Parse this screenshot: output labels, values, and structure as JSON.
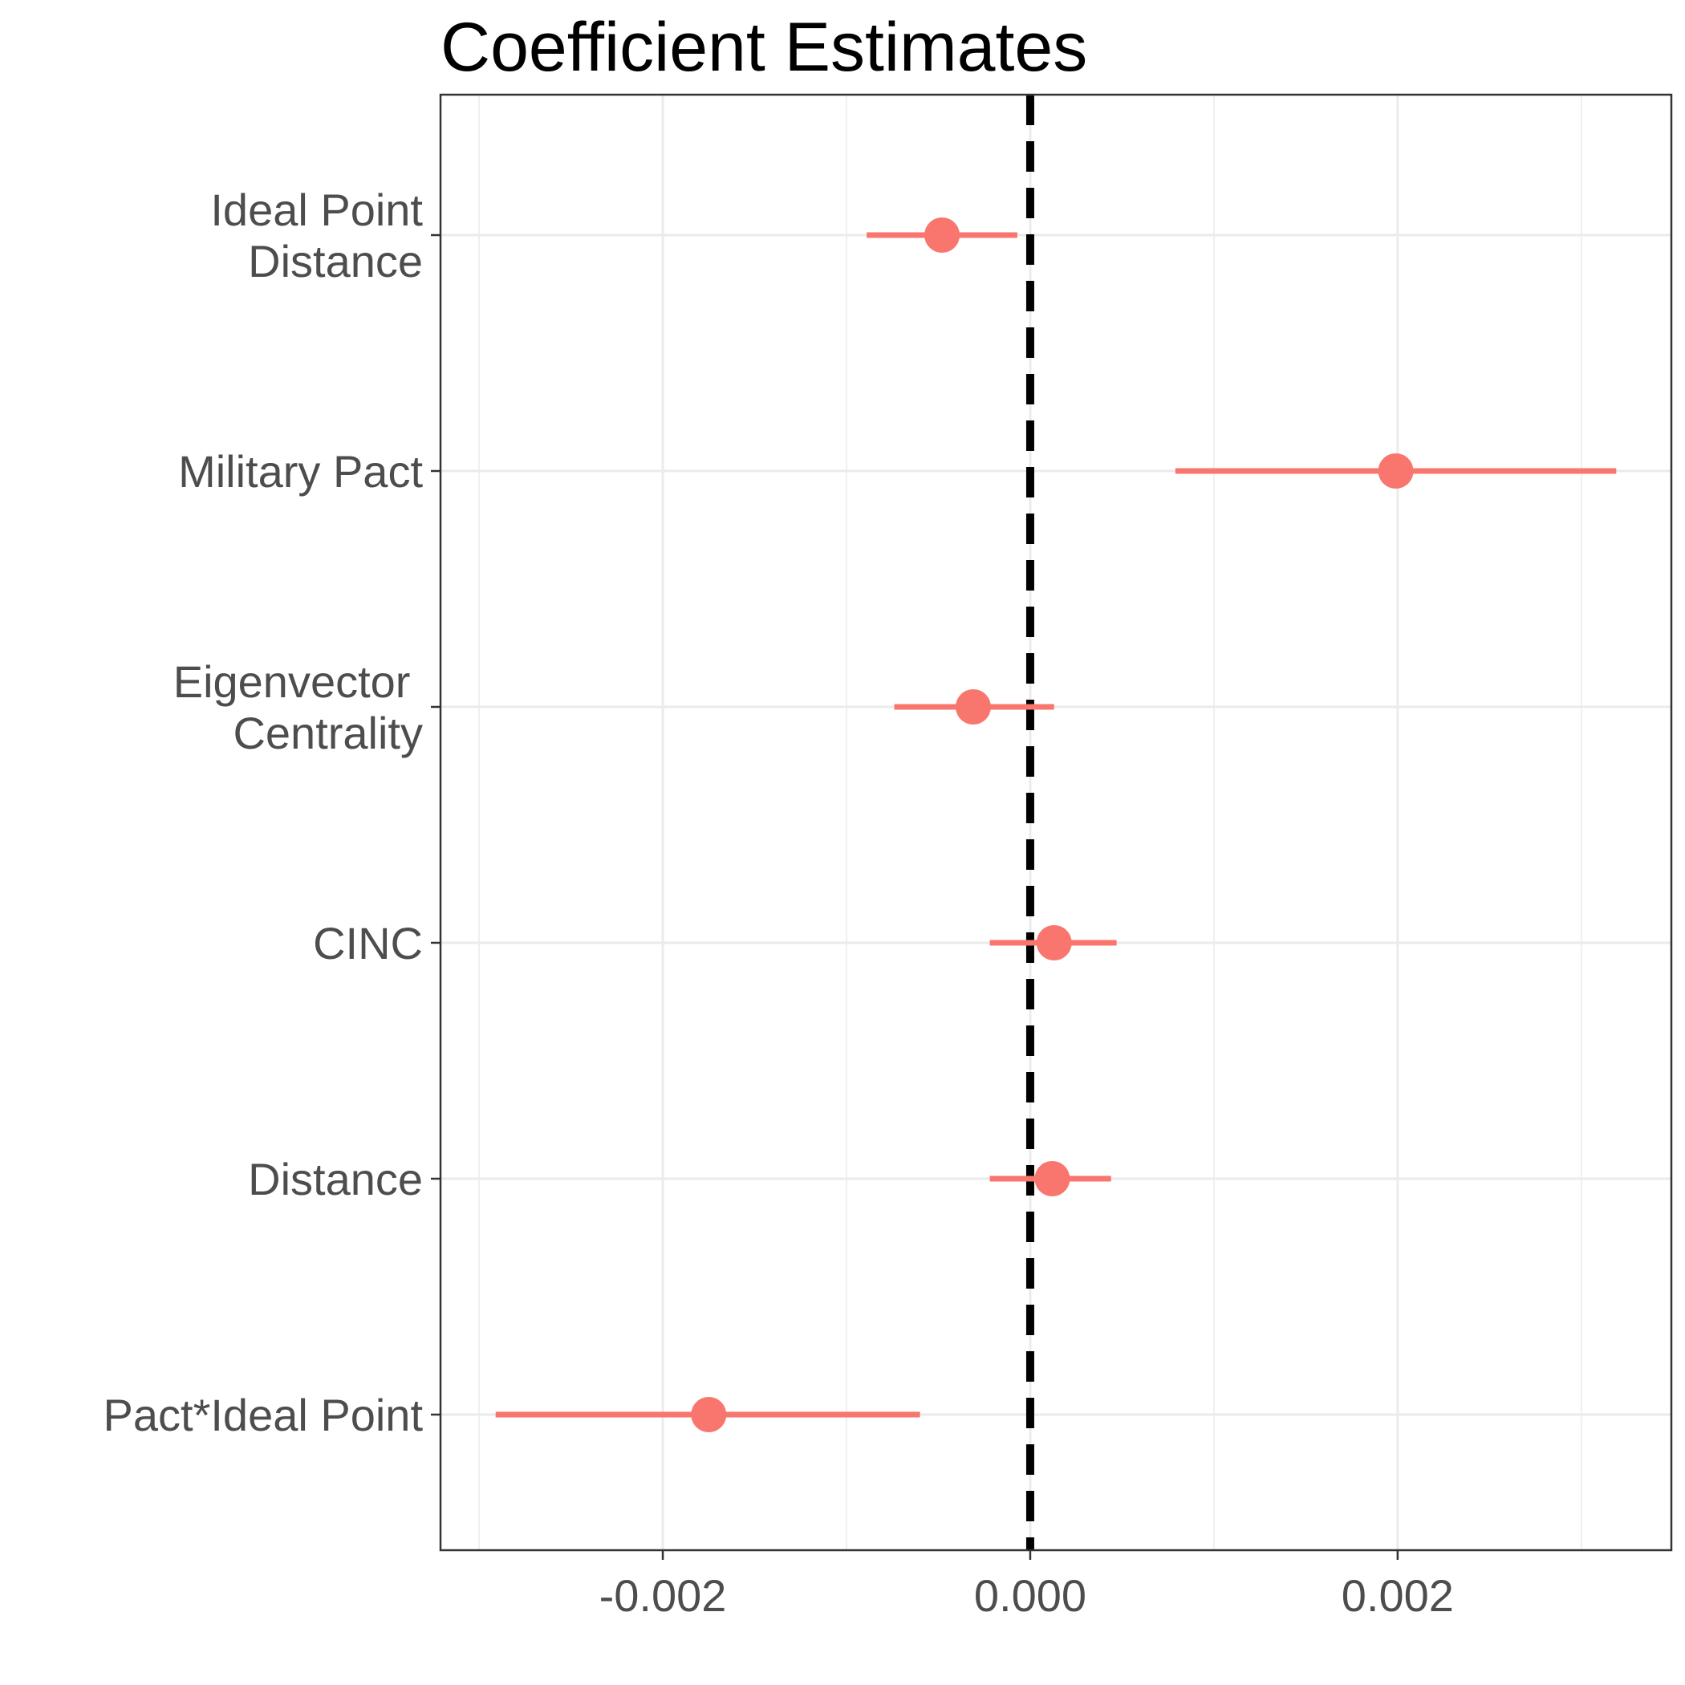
{
  "chart_data": {
    "type": "scatter",
    "title": "Coefficient Estimates",
    "xlabel": "",
    "ylabel": "",
    "xlim": [
      -0.00321,
      0.00349
    ],
    "x_ticks": [
      {
        "value": -0.002,
        "label": "-0.002"
      },
      {
        "value": 0.0,
        "label": "0.000"
      },
      {
        "value": 0.002,
        "label": "0.002"
      }
    ],
    "minor_x_gridlines": [
      -0.003,
      -0.001,
      0.001,
      0.003
    ],
    "reference_line": {
      "x": 0.0,
      "style": "dashed",
      "color": "#000000"
    },
    "grid": true,
    "point_color": "#f8766d",
    "series": [
      {
        "points": [
          {
            "label": [
              "Ideal Point",
              "Distance"
            ],
            "estimate": -0.00048,
            "lower": -0.00089,
            "upper": -7e-05
          },
          {
            "label": [
              "Military Pact"
            ],
            "estimate": 0.00199,
            "lower": 0.00079,
            "upper": 0.00319
          },
          {
            "label": [
              "Eigenvector ",
              "Centrality"
            ],
            "estimate": -0.00031,
            "lower": -0.00074,
            "upper": 0.00013
          },
          {
            "label": [
              "CINC"
            ],
            "estimate": 0.00013,
            "lower": -0.00022,
            "upper": 0.00047
          },
          {
            "label": [
              "Distance"
            ],
            "estimate": 0.00012,
            "lower": -0.00022,
            "upper": 0.00044
          },
          {
            "label": [
              "Pact*Ideal Point"
            ],
            "estimate": -0.00175,
            "lower": -0.00291,
            "upper": -0.0006
          }
        ]
      }
    ]
  }
}
